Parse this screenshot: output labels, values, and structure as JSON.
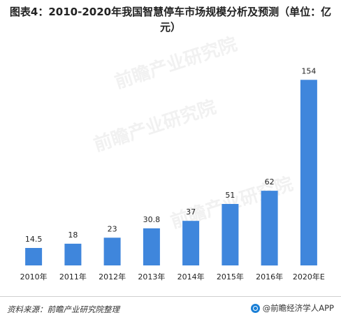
{
  "chart_data": {
    "type": "bar",
    "title": "图表4：2010-2020年我国智慧停车市场规模分析及预测（单位：亿元）",
    "title_line1": "图表4：2010-2020年我国智慧停车市场规模分析及预测（单位：亿",
    "title_line2": "元）",
    "categories": [
      "2010年",
      "2011年",
      "2012年",
      "2013年",
      "2014年",
      "2015年",
      "2016年",
      "2020年E"
    ],
    "values": [
      14.5,
      18,
      23,
      30.8,
      37,
      51,
      62,
      154
    ],
    "value_labels": [
      "14.5",
      "18",
      "23",
      "30.8",
      "37",
      "51",
      "62",
      "154"
    ],
    "ylim": [
      0,
      160
    ],
    "grid": false,
    "bar_color": "#3f86dc"
  },
  "footer": {
    "source": "资料来源：前瞻产业研究院整理",
    "brand": "@前瞻经济学人APP"
  },
  "watermark": {
    "text": "前瞻产业研究院"
  }
}
